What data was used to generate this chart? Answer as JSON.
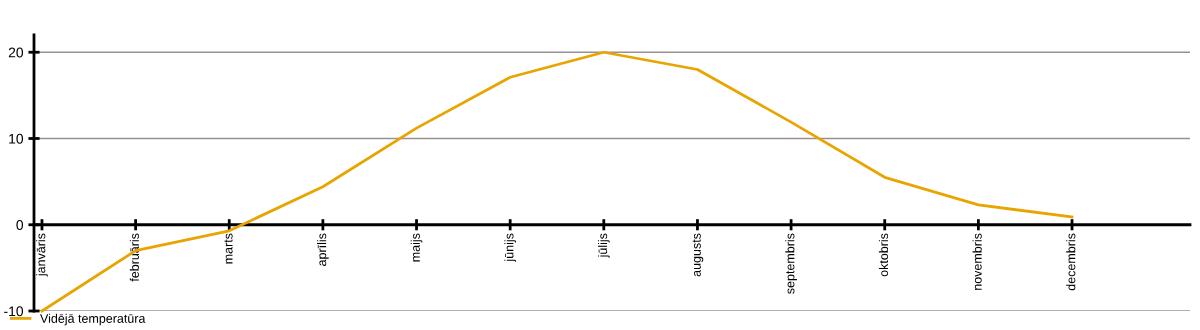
{
  "chart_data": {
    "type": "line",
    "categories": [
      "janvāris",
      "februāris",
      "marts",
      "aprīlis",
      "maijs",
      "jūnijs",
      "jūlijs",
      "augusts",
      "septembris",
      "oktobris",
      "novembris",
      "decembris"
    ],
    "series": [
      {
        "name": "Vidējā temperatūra",
        "color": "#e8a400",
        "values": [
          -10,
          -3.0,
          -0.7,
          4.4,
          11.2,
          17.1,
          20,
          18.0,
          11.9,
          5.5,
          2.3,
          0.9
        ]
      }
    ],
    "ylim": [
      -10,
      22
    ],
    "yticks": [
      -10,
      0,
      10,
      20
    ],
    "grid": "y",
    "legend": "bottom left",
    "marker": "none",
    "line_style": "solid"
  }
}
